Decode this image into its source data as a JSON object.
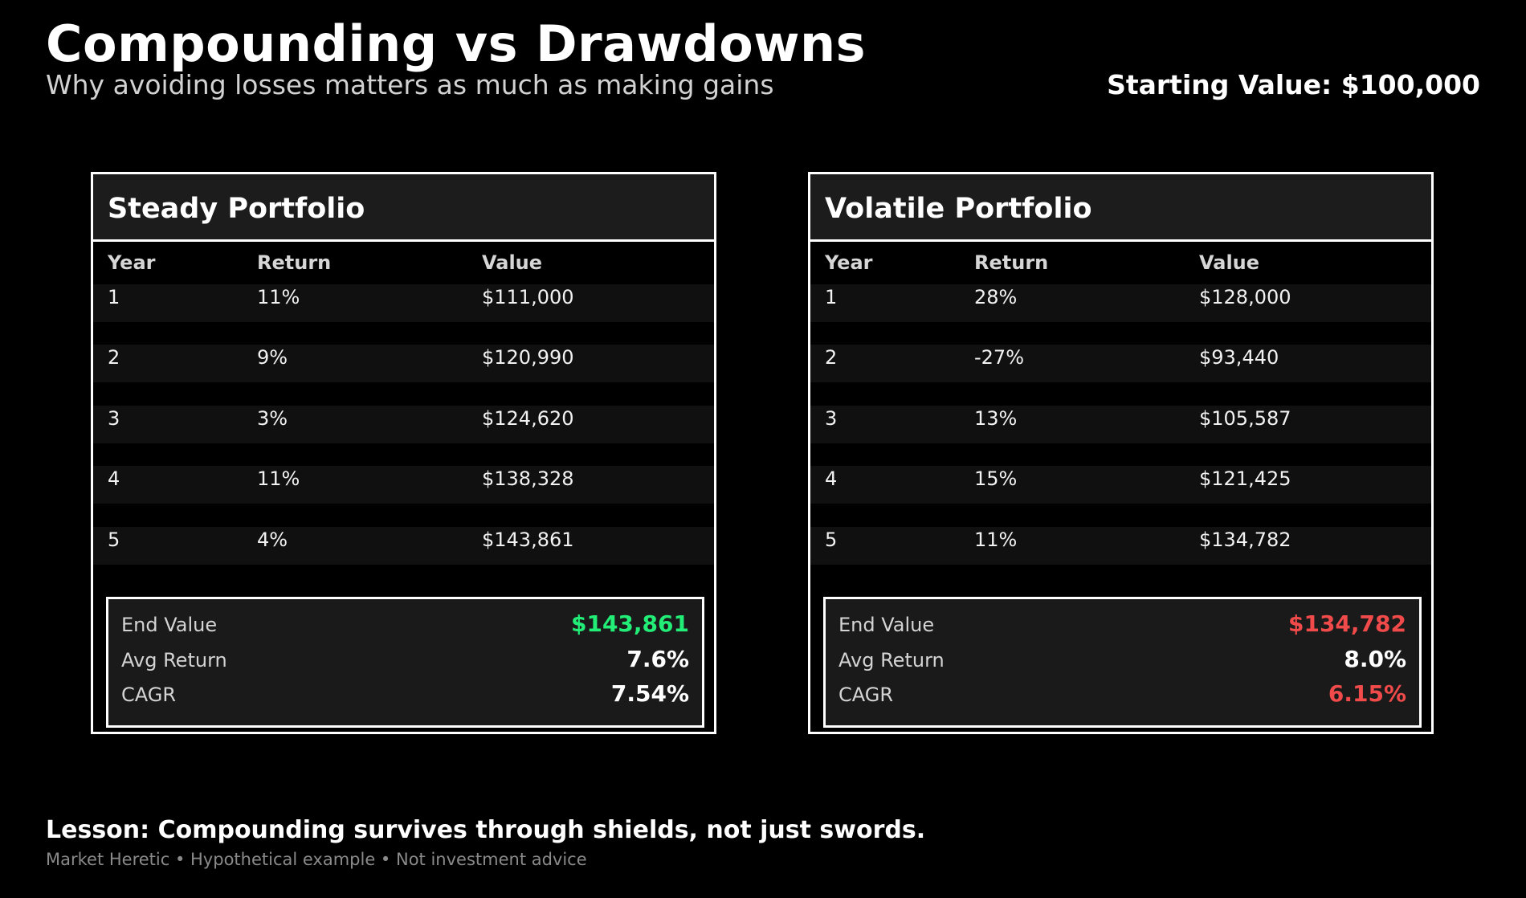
{
  "header": {
    "title": "Compounding vs Drawdowns",
    "subtitle": "Why avoiding losses matters as much as making gains",
    "starting_value": "Starting Value: $100,000"
  },
  "colors": {
    "background": "#000000",
    "panel_header": "#1c1c1c",
    "row_fill": "#101010",
    "positive": "#22ee77",
    "negative": "#f04a4a",
    "neutral": "#ffffff"
  },
  "columns": [
    "Year",
    "Return",
    "Value"
  ],
  "chart_data": [
    {
      "type": "table",
      "title": "Steady Portfolio",
      "columns": [
        "Year",
        "Return",
        "Value"
      ],
      "rows": [
        [
          "1",
          "11%",
          "$111,000"
        ],
        [
          "2",
          "9%",
          "$120,990"
        ],
        [
          "3",
          "3%",
          "$124,620"
        ],
        [
          "4",
          "11%",
          "$138,328"
        ],
        [
          "5",
          "4%",
          "$143,861"
        ]
      ],
      "summary": [
        {
          "label": "End Value",
          "value": "$143,861",
          "color": "#22ee77"
        },
        {
          "label": "Avg Return",
          "value": "7.6%",
          "color": "#ffffff"
        },
        {
          "label": "CAGR",
          "value": "7.54%",
          "color": "#ffffff"
        }
      ]
    },
    {
      "type": "table",
      "title": "Volatile Portfolio",
      "columns": [
        "Year",
        "Return",
        "Value"
      ],
      "rows": [
        [
          "1",
          "28%",
          "$128,000"
        ],
        [
          "2",
          "-27%",
          "$93,440"
        ],
        [
          "3",
          "13%",
          "$105,587"
        ],
        [
          "4",
          "15%",
          "$121,425"
        ],
        [
          "5",
          "11%",
          "$134,782"
        ]
      ],
      "summary": [
        {
          "label": "End Value",
          "value": "$134,782",
          "color": "#f04a4a"
        },
        {
          "label": "Avg Return",
          "value": "8.0%",
          "color": "#ffffff"
        },
        {
          "label": "CAGR",
          "value": "6.15%",
          "color": "#f04a4a"
        }
      ]
    }
  ],
  "lesson": "Lesson: Compounding survives through shields, not just swords.",
  "footer": "Market Heretic • Hypothetical example • Not investment advice"
}
